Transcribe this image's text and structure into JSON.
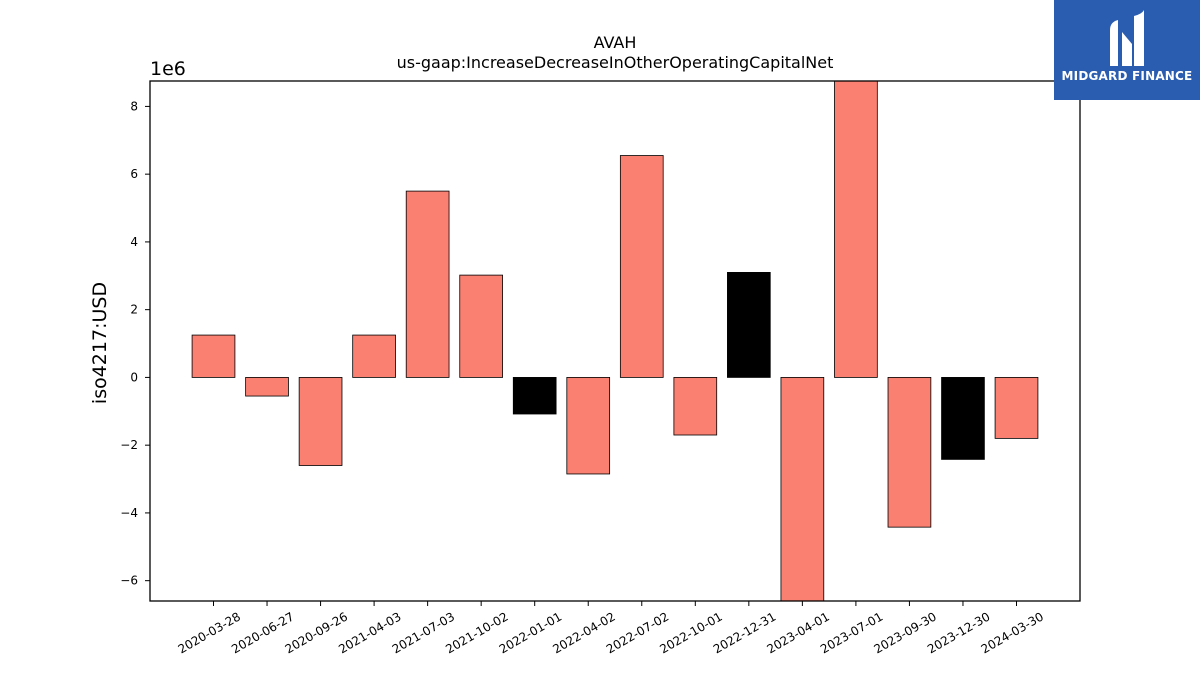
{
  "chart_data": {
    "type": "bar",
    "title": "AVAH",
    "subtitle": "us-gaap:IncreaseDecreaseInOtherOperatingCapitalNet",
    "ylabel": "iso4217:USD",
    "xlabel": "",
    "scale_label": "1e6",
    "ylim": [
      -6.6,
      8.75
    ],
    "yticks": [
      -6,
      -4,
      -2,
      0,
      2,
      4,
      6,
      8
    ],
    "grid": false,
    "categories": [
      "2020-03-28",
      "2020-06-27",
      "2020-09-26",
      "2021-04-03",
      "2021-07-03",
      "2021-10-02",
      "2022-01-01",
      "2022-04-02",
      "2022-07-02",
      "2022-10-01",
      "2022-12-31",
      "2023-04-01",
      "2023-07-01",
      "2023-09-30",
      "2023-12-30",
      "2024-03-30"
    ],
    "values": [
      1.25,
      -0.55,
      -2.6,
      1.25,
      5.5,
      3.02,
      -1.08,
      -2.85,
      6.55,
      -1.7,
      3.1,
      -6.6,
      8.75,
      -4.42,
      -2.42,
      -1.8
    ],
    "colors": [
      "#fa8072",
      "#fa8072",
      "#fa8072",
      "#fa8072",
      "#fa8072",
      "#fa8072",
      "#000000",
      "#fa8072",
      "#fa8072",
      "#fa8072",
      "#000000",
      "#fa8072",
      "#fa8072",
      "#fa8072",
      "#000000",
      "#fa8072"
    ]
  },
  "logo": {
    "text": "MIDGARD FINANCE",
    "name": "midgard-logo-icon",
    "color": "#2a5db0"
  }
}
